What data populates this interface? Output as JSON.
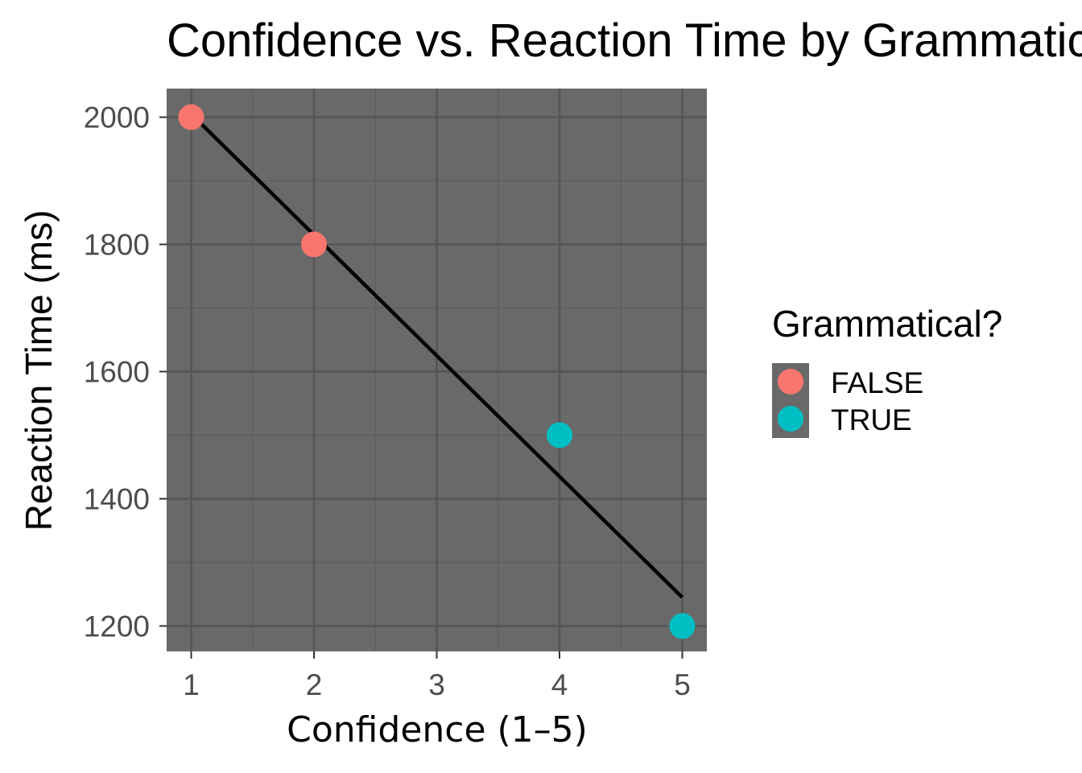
{
  "chart_data": {
    "type": "scatter",
    "title": "Confidence vs. Reaction Time by Grammaticality",
    "xlabel": "Confidence (1–5)",
    "ylabel": "Reaction Time (ms)",
    "xlim": [
      0.8,
      5.2
    ],
    "ylim": [
      1160,
      2045
    ],
    "x_ticks": [
      1,
      2,
      3,
      4,
      5
    ],
    "y_ticks": [
      1200,
      1400,
      1600,
      1800,
      2000
    ],
    "grid": true,
    "legend": {
      "title": "Grammatical?",
      "placement": "right"
    },
    "series": [
      {
        "name": "FALSE",
        "color": "#F8766D",
        "points": [
          {
            "x": 1,
            "y": 2000
          },
          {
            "x": 2,
            "y": 1800
          }
        ]
      },
      {
        "name": "TRUE",
        "color": "#00BFC4",
        "points": [
          {
            "x": 4,
            "y": 1500
          },
          {
            "x": 5,
            "y": 1200
          }
        ]
      }
    ],
    "trend_line": {
      "type": "linear",
      "color": "#000000",
      "from": {
        "x": 1,
        "y": 2005
      },
      "to": {
        "x": 5,
        "y": 1245
      }
    },
    "panel_color": "#696969"
  }
}
